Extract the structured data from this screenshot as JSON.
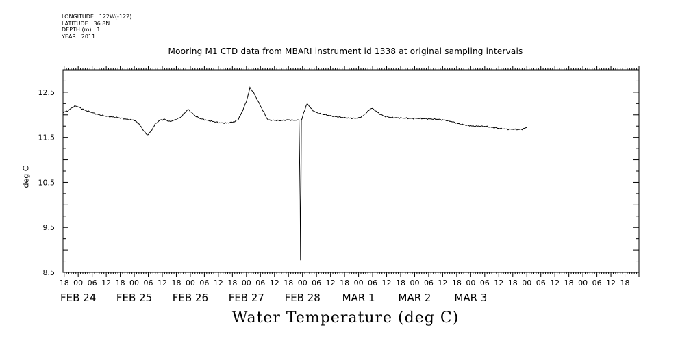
{
  "header": {
    "meta_lines": [
      "LONGITUDE : 122W(-122)",
      "LATITUDE : 36.8N",
      "DEPTH (m) : 1",
      "YEAR : 2011"
    ]
  },
  "chart_data": {
    "type": "line",
    "title": "Mooring M1 CTD data from MBARI instrument id 1338 at original sampling intervals",
    "xlabel": "Water Temperature (deg C)",
    "ylabel": "deg C",
    "xlim_hours": [
      -6.5,
      240
    ],
    "ylim": [
      8.5,
      13.0
    ],
    "yticks": [
      {
        "value": 12.5,
        "label": "12.5"
      },
      {
        "value": 11.5,
        "label": "11.5"
      },
      {
        "value": 10.5,
        "label": "10.5"
      },
      {
        "value": 9.5,
        "label": "9.5"
      },
      {
        "value": 8.5,
        "label": "8.5"
      }
    ],
    "hour_tick_labels": [
      {
        "h": -6,
        "label": "18"
      },
      {
        "h": 0,
        "label": "00"
      },
      {
        "h": 6,
        "label": "06"
      },
      {
        "h": 12,
        "label": "12"
      },
      {
        "h": 18,
        "label": "18"
      },
      {
        "h": 24,
        "label": "00"
      },
      {
        "h": 30,
        "label": "06"
      },
      {
        "h": 36,
        "label": "12"
      },
      {
        "h": 42,
        "label": "18"
      },
      {
        "h": 48,
        "label": "00"
      },
      {
        "h": 54,
        "label": "06"
      },
      {
        "h": 60,
        "label": "12"
      },
      {
        "h": 66,
        "label": "18"
      },
      {
        "h": 72,
        "label": "00"
      },
      {
        "h": 78,
        "label": "06"
      },
      {
        "h": 84,
        "label": "12"
      },
      {
        "h": 90,
        "label": "18"
      },
      {
        "h": 96,
        "label": "00"
      },
      {
        "h": 102,
        "label": "06"
      },
      {
        "h": 108,
        "label": "12"
      },
      {
        "h": 114,
        "label": "18"
      },
      {
        "h": 120,
        "label": "00"
      },
      {
        "h": 126,
        "label": "06"
      },
      {
        "h": 132,
        "label": "12"
      },
      {
        "h": 138,
        "label": "18"
      },
      {
        "h": 144,
        "label": "00"
      },
      {
        "h": 150,
        "label": "06"
      },
      {
        "h": 156,
        "label": "12"
      },
      {
        "h": 162,
        "label": "18"
      },
      {
        "h": 168,
        "label": "00"
      },
      {
        "h": 174,
        "label": "06"
      },
      {
        "h": 180,
        "label": "12"
      },
      {
        "h": 186,
        "label": "18"
      },
      {
        "h": 192,
        "label": "00"
      },
      {
        "h": 198,
        "label": "06"
      },
      {
        "h": 204,
        "label": "12"
      },
      {
        "h": 210,
        "label": "18"
      },
      {
        "h": 216,
        "label": "00"
      },
      {
        "h": 222,
        "label": "06"
      },
      {
        "h": 228,
        "label": "12"
      },
      {
        "h": 234,
        "label": "18"
      }
    ],
    "date_labels": [
      {
        "h": 0,
        "label": "FEB 24"
      },
      {
        "h": 24,
        "label": "FEB 25"
      },
      {
        "h": 48,
        "label": "FEB 26"
      },
      {
        "h": 72,
        "label": "FEB 27"
      },
      {
        "h": 96,
        "label": "FEB 28"
      },
      {
        "h": 120,
        "label": "MAR  1"
      },
      {
        "h": 144,
        "label": "MAR  2"
      },
      {
        "h": 168,
        "label": "MAR  3"
      }
    ],
    "series": [
      {
        "color": "#000000",
        "x_hours": [
          -6.5,
          -4,
          -3,
          -1,
          1,
          3,
          6,
          9,
          12,
          15,
          18,
          21,
          24,
          26,
          28,
          29.5,
          31,
          33,
          35,
          37,
          39,
          41,
          42,
          44,
          46,
          47,
          48,
          50,
          52,
          55,
          58,
          61,
          64,
          67,
          68.5,
          70,
          72,
          73.5,
          75,
          76,
          77,
          78,
          79,
          80,
          81,
          82,
          84,
          86,
          88,
          90,
          92,
          94.5,
          94.7,
          95,
          95.15,
          95.35,
          95.5,
          95.8,
          96.5,
          98,
          100,
          101,
          102,
          104,
          106,
          109,
          112,
          115,
          118,
          120,
          122,
          124,
          125.5,
          127,
          129,
          131,
          134,
          138,
          142,
          146,
          150,
          154,
          157,
          160,
          163,
          166,
          169,
          172,
          175,
          177,
          179,
          180,
          182,
          184,
          186,
          188,
          190,
          192
        ],
        "values": [
          12.05,
          12.1,
          12.15,
          12.2,
          12.15,
          12.1,
          12.05,
          12.0,
          11.97,
          11.95,
          11.93,
          11.9,
          11.88,
          11.8,
          11.65,
          11.55,
          11.62,
          11.8,
          11.88,
          11.9,
          11.85,
          11.88,
          11.9,
          11.95,
          12.07,
          12.12,
          12.08,
          11.98,
          11.92,
          11.88,
          11.85,
          11.82,
          11.82,
          11.85,
          11.9,
          12.05,
          12.3,
          12.6,
          12.5,
          12.4,
          12.3,
          12.2,
          12.1,
          12.0,
          11.9,
          11.88,
          11.88,
          11.87,
          11.88,
          11.89,
          11.88,
          11.88,
          11.2,
          10.1,
          8.77,
          10.2,
          11.88,
          11.9,
          12.05,
          12.25,
          12.12,
          12.08,
          12.05,
          12.02,
          12.0,
          11.97,
          11.95,
          11.93,
          11.92,
          11.93,
          11.98,
          12.08,
          12.15,
          12.1,
          12.02,
          11.97,
          11.94,
          11.93,
          11.92,
          11.92,
          11.91,
          11.9,
          11.88,
          11.85,
          11.8,
          11.77,
          11.75,
          11.75,
          11.74,
          11.72,
          11.71,
          11.7,
          11.69,
          11.68,
          11.68,
          11.67,
          11.68,
          11.72
        ]
      }
    ],
    "grid": false,
    "legend": "none"
  }
}
